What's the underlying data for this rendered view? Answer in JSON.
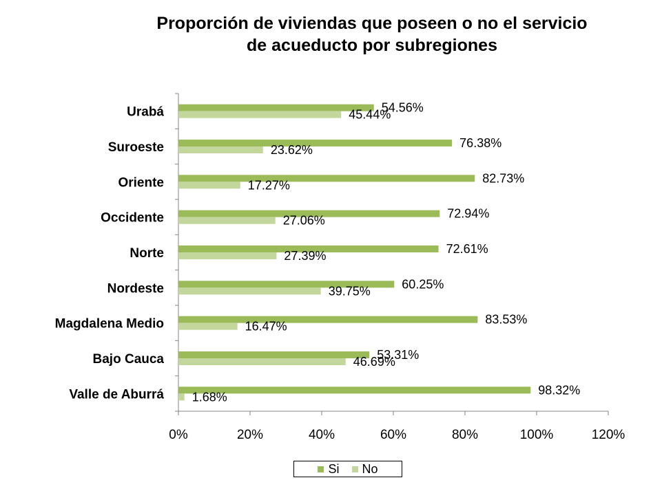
{
  "chart_data": {
    "type": "bar",
    "orientation": "horizontal",
    "title_lines": [
      "Proporción de viviendas que poseen o no el servicio",
      "de acueducto por subregiones"
    ],
    "categories": [
      "Urabá",
      "Suroeste",
      "Oriente",
      "Occidente",
      "Norte",
      "Nordeste",
      "Magdalena Medio",
      "Bajo Cauca",
      "Valle de Aburrá"
    ],
    "series": [
      {
        "name": "Si",
        "color": "#9bbb59",
        "values": [
          54.56,
          76.38,
          82.73,
          72.94,
          72.61,
          60.25,
          83.53,
          53.31,
          98.32
        ],
        "labels": [
          "54.56%",
          "76.38%",
          "82.73%",
          "72.94%",
          "72.61%",
          "60.25%",
          "83.53%",
          "53.31%",
          "98.32%"
        ]
      },
      {
        "name": "No",
        "color": "#c3d69b",
        "values": [
          45.44,
          23.62,
          17.27,
          27.06,
          27.39,
          39.75,
          16.47,
          46.69,
          1.68
        ],
        "labels": [
          "45.44%",
          "23.62%",
          "17.27%",
          "27.06%",
          "27.39%",
          "39.75%",
          "16.47%",
          "46.69%",
          "1.68%"
        ]
      }
    ],
    "xlim": [
      0,
      120
    ],
    "x_ticks": [
      "0%",
      "20%",
      "40%",
      "60%",
      "80%",
      "100%",
      "120%"
    ],
    "grid": false,
    "legend_position": "bottom"
  }
}
